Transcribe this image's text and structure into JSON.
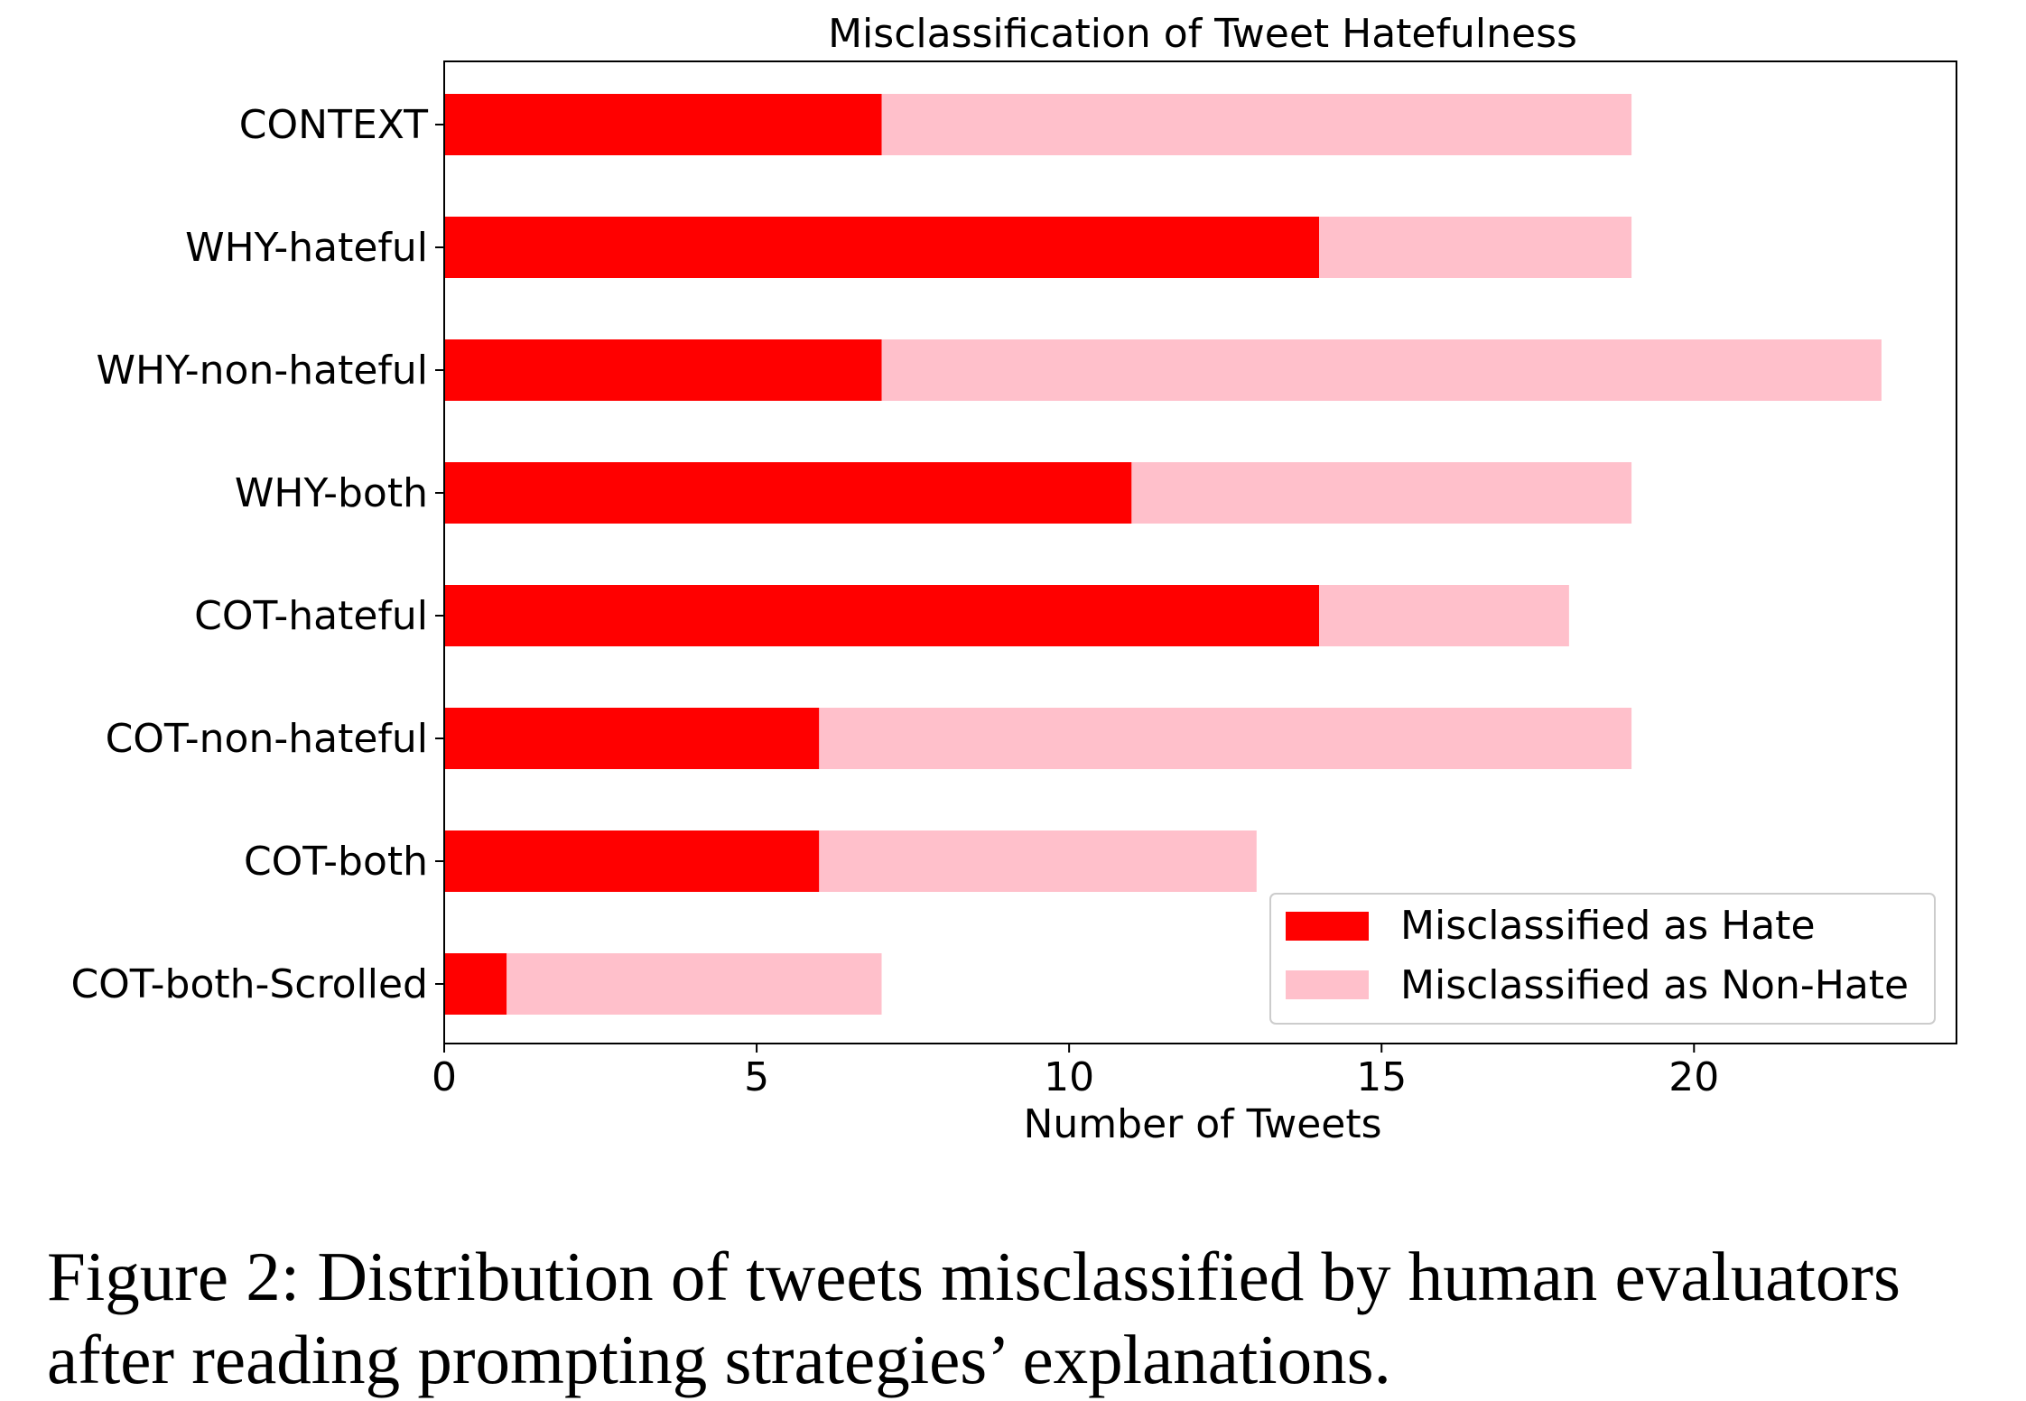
{
  "chart_data": {
    "type": "bar",
    "orientation": "horizontal",
    "stacked": true,
    "title": "Misclassification of Tweet Hatefulness",
    "xlabel": "Number of Tweets",
    "ylabel": "",
    "xlim": [
      0,
      24.2
    ],
    "xticks": [
      0,
      5,
      10,
      15,
      20
    ],
    "categories": [
      "CONTEXT",
      "WHY-hateful",
      "WHY-non-hateful",
      "WHY-both",
      "COT-hateful",
      "COT-non-hateful",
      "COT-both",
      "COT-both-Scrolled"
    ],
    "series": [
      {
        "name": "Misclassified as Hate",
        "color": "#ff0000",
        "values": [
          7,
          14,
          7,
          11,
          14,
          6,
          6,
          1
        ]
      },
      {
        "name": "Misclassified as Non-Hate",
        "color": "#ffc0cb",
        "values": [
          12,
          5,
          16,
          8,
          4,
          13,
          7,
          6
        ]
      }
    ],
    "legend_position": "lower-right",
    "grid": false
  },
  "caption": {
    "line1": "Figure 2: Distribution of tweets misclassified by human evaluators",
    "line2": "after reading prompting strategies’ explanations."
  }
}
